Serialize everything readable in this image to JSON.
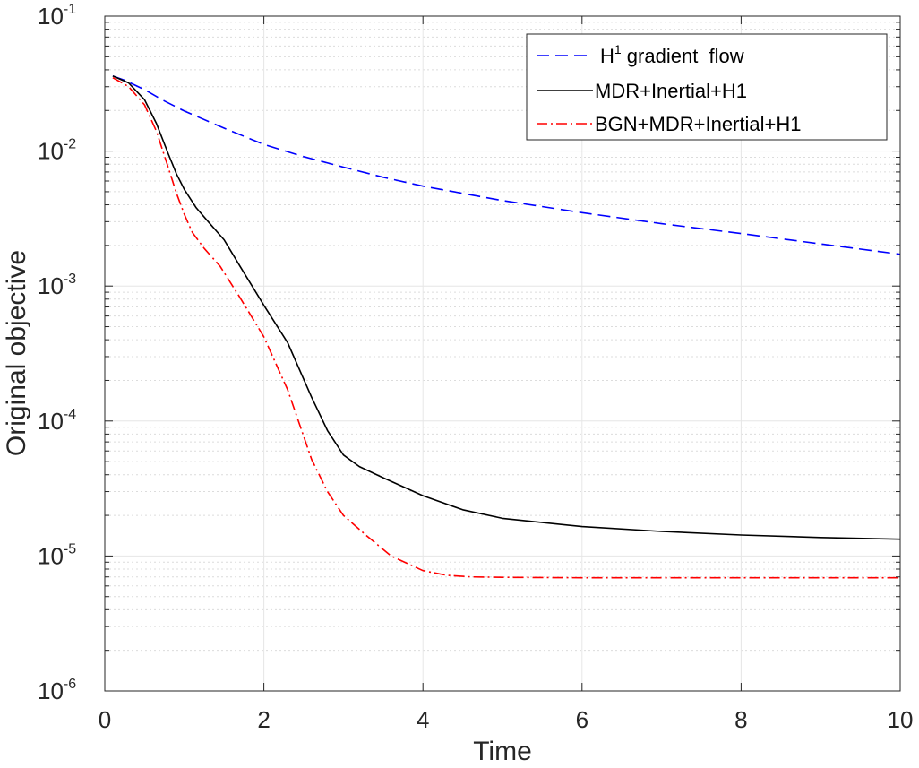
{
  "chart_data": {
    "type": "line",
    "xlabel": "Time",
    "ylabel": "Original objective",
    "xlim": [
      0,
      10
    ],
    "ylim": [
      1e-06,
      0.1
    ],
    "yscale": "log",
    "grid": true,
    "minor_grid": true,
    "x_ticks": [
      "0",
      "2",
      "4",
      "6",
      "8",
      "10"
    ],
    "y_ticks": [
      {
        "base": "10",
        "exp": "-1",
        "value": 0.1
      },
      {
        "base": "10",
        "exp": "-2",
        "value": 0.01
      },
      {
        "base": "10",
        "exp": "-3",
        "value": 0.001
      },
      {
        "base": "10",
        "exp": "-4",
        "value": 0.0001
      },
      {
        "base": "10",
        "exp": "-5",
        "value": 1e-05
      },
      {
        "base": "10",
        "exp": "-6",
        "value": 1e-06
      }
    ],
    "legend_position": "top-right",
    "series": [
      {
        "name": "H1 gradient flow",
        "legend_base": "H",
        "legend_sup": "1",
        "legend_rest": " gradient  flow",
        "color": "#0000ff",
        "style": "dashed",
        "x": [
          0.1,
          0.25,
          0.5,
          0.75,
          1.0,
          1.5,
          2.0,
          2.5,
          3.0,
          3.5,
          4.0,
          5.0,
          6.0,
          7.0,
          8.0,
          9.0,
          10.0
        ],
        "y": [
          0.036,
          0.0335,
          0.0285,
          0.0235,
          0.0198,
          0.0148,
          0.0112,
          0.0091,
          0.0076,
          0.0064,
          0.0055,
          0.0043,
          0.0035,
          0.0029,
          0.00245,
          0.00205,
          0.00172
        ]
      },
      {
        "name": "MDR+Inertial+H1",
        "color": "#000000",
        "style": "solid",
        "x": [
          0.1,
          0.3,
          0.5,
          0.65,
          0.8,
          0.9,
          1.0,
          1.15,
          1.3,
          1.5,
          1.7,
          2.0,
          2.3,
          2.6,
          2.8,
          3.0,
          3.2,
          3.5,
          4.0,
          4.5,
          5.0,
          6.0,
          7.0,
          8.0,
          9.0,
          10.0
        ],
        "y": [
          0.036,
          0.032,
          0.024,
          0.016,
          0.0095,
          0.0068,
          0.0052,
          0.0038,
          0.003,
          0.0022,
          0.0014,
          0.00072,
          0.00038,
          0.00015,
          8.5e-05,
          5.6e-05,
          4.6e-05,
          3.8e-05,
          2.8e-05,
          2.2e-05,
          1.9e-05,
          1.65e-05,
          1.52e-05,
          1.43e-05,
          1.37e-05,
          1.33e-05
        ]
      },
      {
        "name": "BGN+MDR+Inertial+H1",
        "color": "#ff0000",
        "style": "dashdot",
        "x": [
          0.1,
          0.3,
          0.5,
          0.65,
          0.8,
          0.9,
          1.0,
          1.1,
          1.25,
          1.45,
          1.7,
          2.0,
          2.3,
          2.6,
          2.8,
          3.0,
          3.3,
          3.6,
          4.0,
          4.3,
          4.6,
          5.0,
          6.0,
          7.0,
          8.0,
          9.0,
          10.0
        ],
        "y": [
          0.035,
          0.03,
          0.022,
          0.014,
          0.0075,
          0.0049,
          0.0034,
          0.0025,
          0.0019,
          0.0014,
          0.00082,
          0.00042,
          0.00017,
          5.2e-05,
          3e-05,
          2e-05,
          1.4e-05,
          1e-05,
          7.8e-06,
          7.2e-06,
          7e-06,
          6.95e-06,
          6.9e-06,
          6.9e-06,
          6.9e-06,
          6.9e-06,
          6.9e-06
        ]
      }
    ]
  }
}
